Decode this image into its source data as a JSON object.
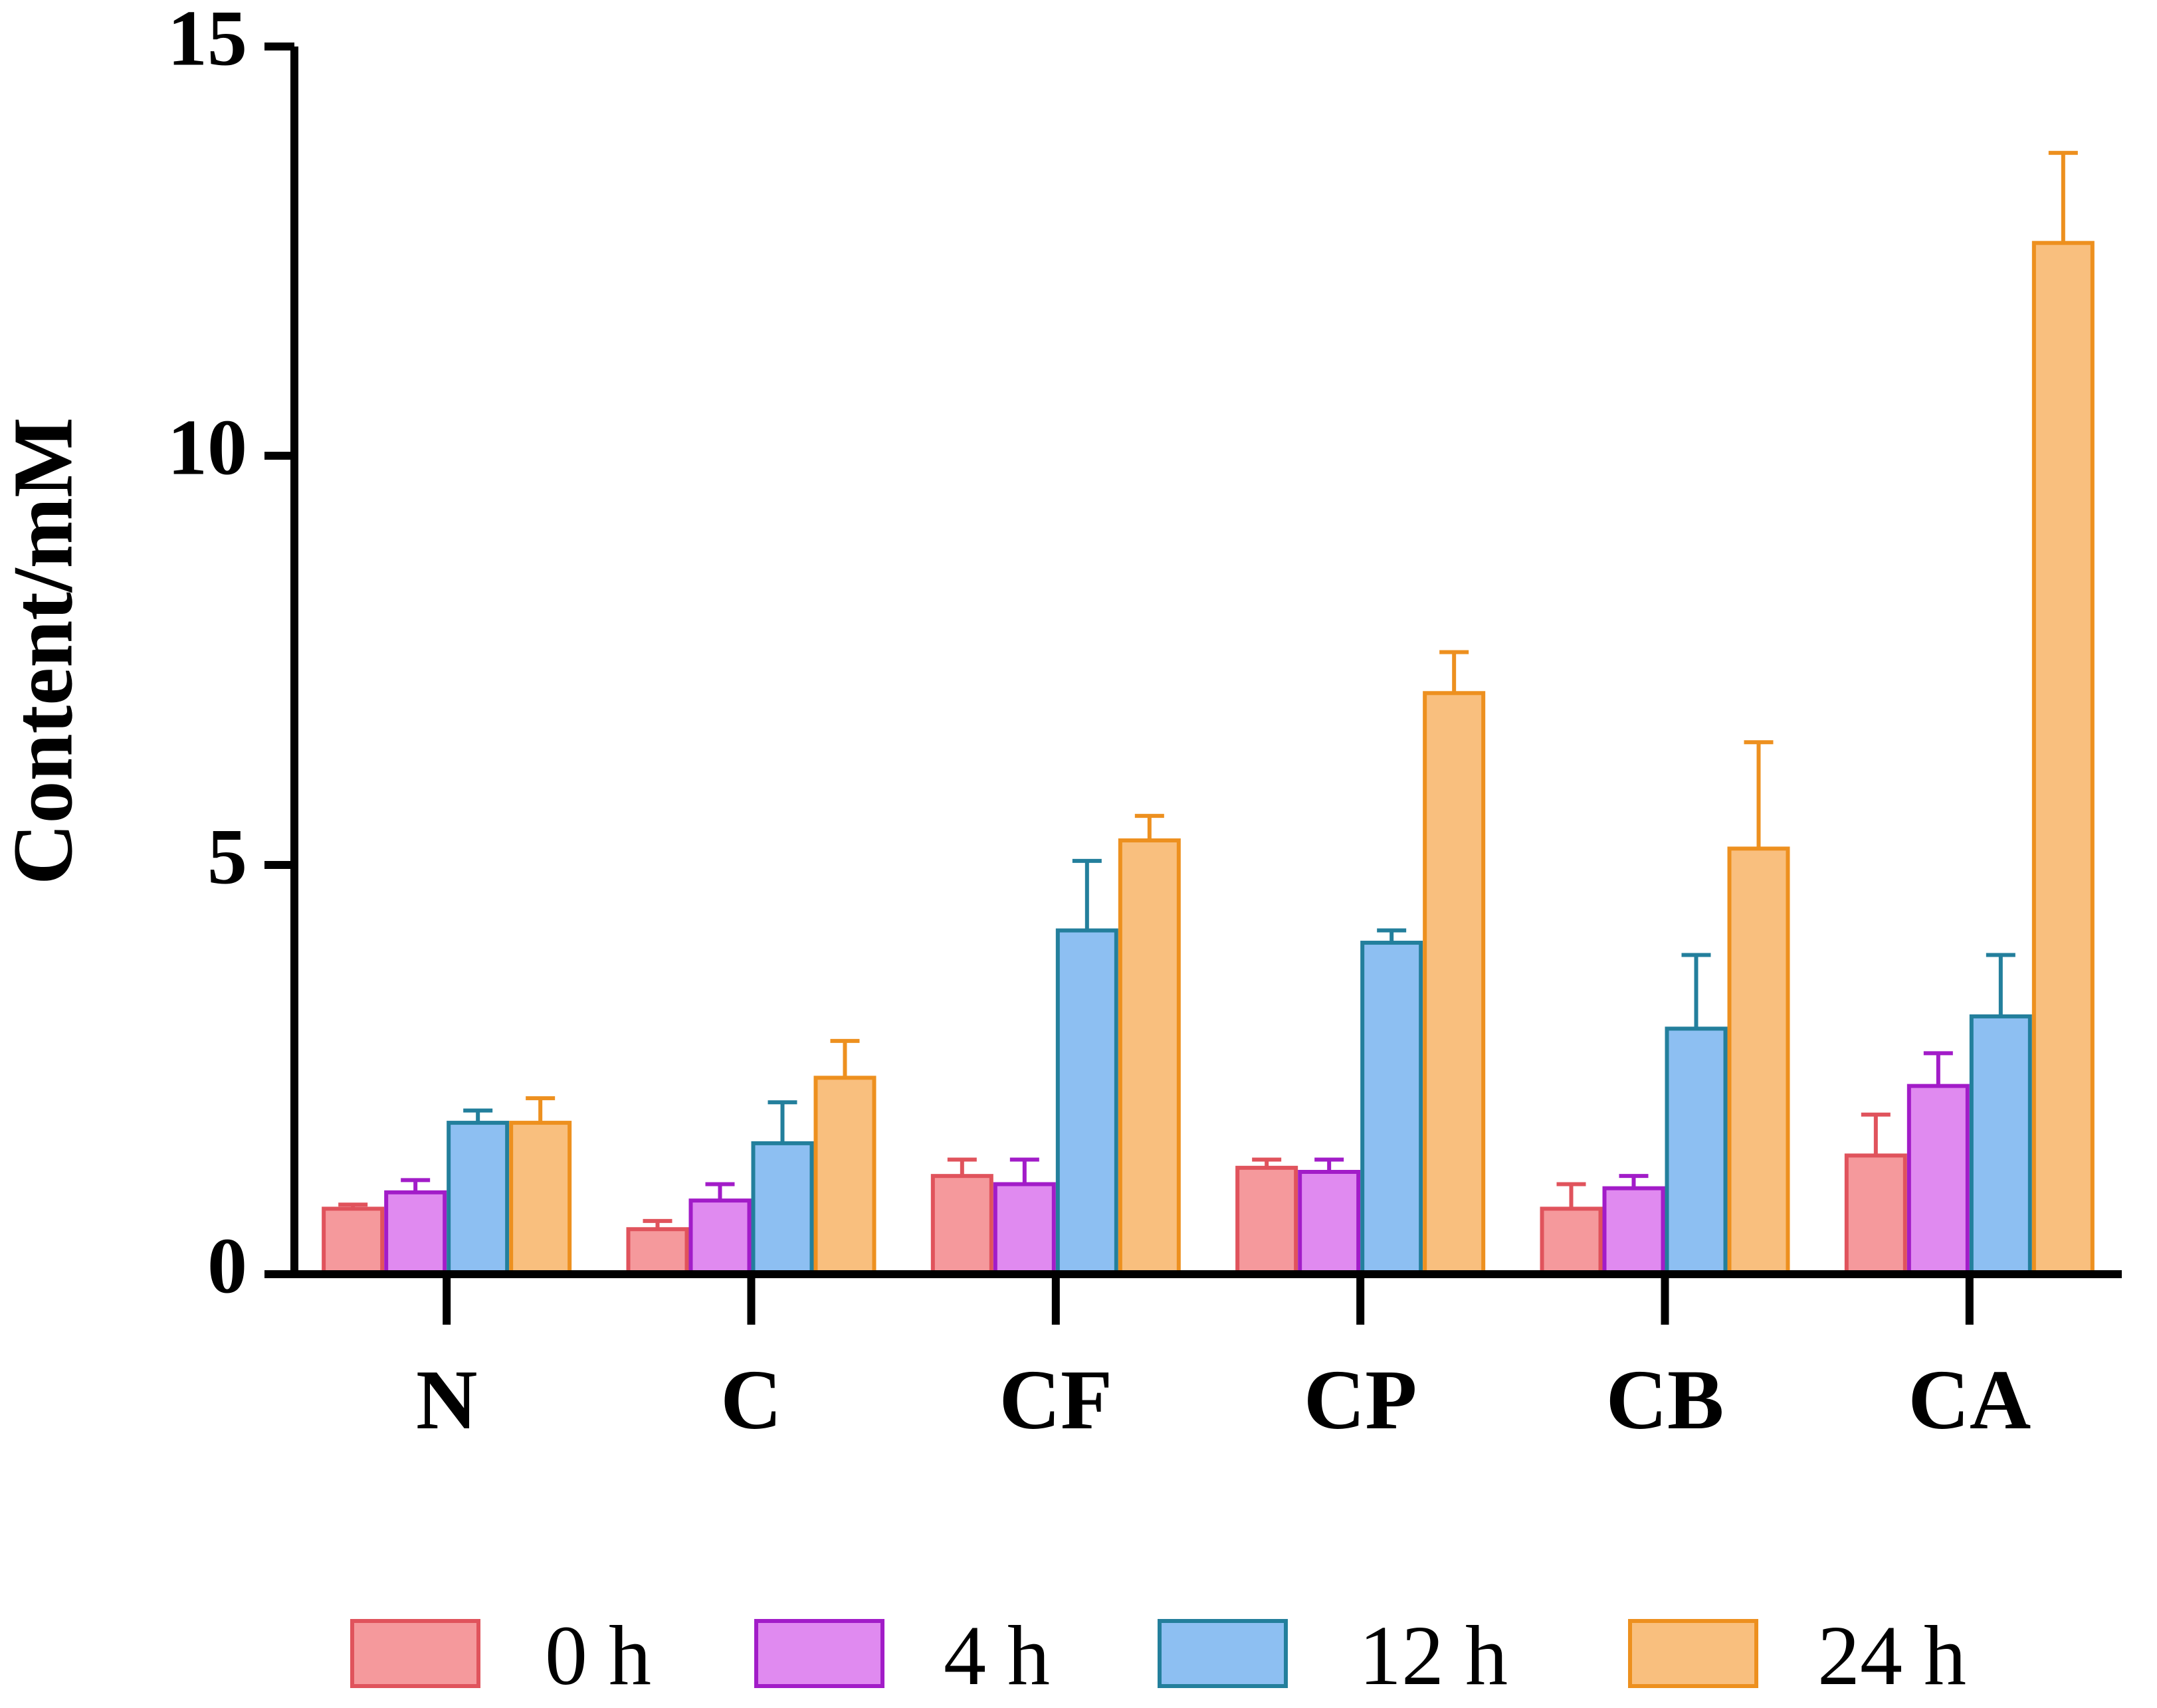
{
  "chart_data": {
    "type": "bar",
    "title": "",
    "xlabel": "",
    "ylabel": "Content/mM",
    "ylim": [
      0,
      15
    ],
    "yticks": [
      0,
      5,
      10,
      15
    ],
    "categories": [
      "N",
      "C",
      "CF",
      "CP",
      "CB",
      "CA"
    ],
    "legend_position": "bottom",
    "grid": false,
    "series": [
      {
        "name": "0 h",
        "fill": "#f5999c",
        "stroke": "#e0535c",
        "values": [
          0.8,
          0.55,
          1.2,
          1.3,
          0.8,
          1.45
        ],
        "errors": [
          0.05,
          0.1,
          0.2,
          0.1,
          0.3,
          0.5
        ]
      },
      {
        "name": "4 h",
        "fill": "#e08af0",
        "stroke": "#a21cc8",
        "values": [
          1.0,
          0.9,
          1.1,
          1.25,
          1.05,
          2.3
        ],
        "errors": [
          0.15,
          0.2,
          0.3,
          0.15,
          0.15,
          0.4
        ]
      },
      {
        "name": "12 h",
        "fill": "#8dbff2",
        "stroke": "#237f9c",
        "values": [
          1.85,
          1.6,
          4.2,
          4.05,
          3.0,
          3.15
        ],
        "errors": [
          0.15,
          0.5,
          0.85,
          0.15,
          0.9,
          0.75
        ]
      },
      {
        "name": "24 h",
        "fill": "#f9bf7e",
        "stroke": "#ed901f",
        "values": [
          1.85,
          2.4,
          5.3,
          7.1,
          5.2,
          12.6
        ],
        "errors": [
          0.3,
          0.45,
          0.3,
          0.5,
          1.3,
          1.1
        ]
      }
    ]
  }
}
